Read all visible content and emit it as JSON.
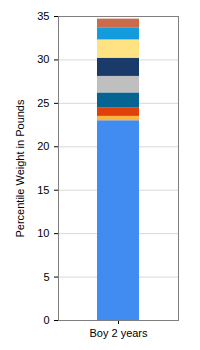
{
  "chart_data": {
    "type": "bar",
    "stacked": true,
    "grid": true,
    "y_label": "Percentile Weight in Pounds",
    "categories": [
      "Boy 2 years"
    ],
    "series": [
      {
        "color": "#418cf0",
        "values": [
          23.0
        ]
      },
      {
        "color": "#fcb441",
        "values": [
          0.5
        ]
      },
      {
        "color": "#e0400a",
        "values": [
          1.0
        ]
      },
      {
        "color": "#056492",
        "values": [
          1.7
        ]
      },
      {
        "color": "#bfbfbf",
        "values": [
          1.9
        ]
      },
      {
        "color": "#1a3b69",
        "values": [
          2.1
        ]
      },
      {
        "color": "#ffe382",
        "values": [
          2.1
        ]
      },
      {
        "color": "#129cdd",
        "values": [
          1.4
        ]
      },
      {
        "color": "#ca6b4b",
        "values": [
          1.0
        ]
      }
    ],
    "ylim": [
      0,
      35
    ],
    "yticks": [
      0,
      5,
      10,
      15,
      20,
      25,
      30,
      35
    ]
  }
}
